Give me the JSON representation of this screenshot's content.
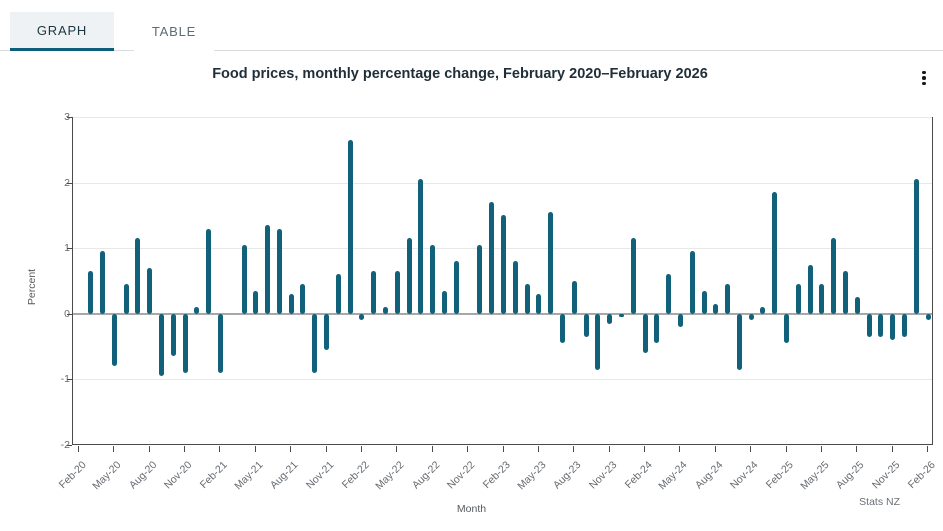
{
  "tabs": {
    "graph": "GRAPH",
    "table": "TABLE"
  },
  "header": {
    "title": "Food prices, monthly percentage change, February 2020–February 2026"
  },
  "menu": {
    "kebab_icon": "kebab-menu"
  },
  "source": "Stats NZ",
  "colors": {
    "bar": "#12617a",
    "tab_underline": "#0d5e78",
    "tab_active_bg": "#eef2f4",
    "zero_line": "#a8a8a8",
    "grid": "#e8e8e8"
  },
  "chart_data": {
    "type": "bar",
    "title": "Food prices, monthly percentage change, February 2020–February 2026",
    "xlabel": "Month",
    "ylabel": "Percent",
    "ylim": [
      -2,
      3
    ],
    "yticks": [
      3,
      2,
      1,
      0,
      -1,
      -2
    ],
    "grid": true,
    "label_every": 3,
    "categories": [
      "Feb-20",
      "Mar-20",
      "Apr-20",
      "May-20",
      "Jun-20",
      "Jul-20",
      "Aug-20",
      "Sep-20",
      "Oct-20",
      "Nov-20",
      "Dec-20",
      "Jan-21",
      "Feb-21",
      "Mar-21",
      "Apr-21",
      "May-21",
      "Jun-21",
      "Jul-21",
      "Aug-21",
      "Sep-21",
      "Oct-21",
      "Nov-21",
      "Dec-21",
      "Jan-22",
      "Feb-22",
      "Mar-22",
      "Apr-22",
      "May-22",
      "Jun-22",
      "Jul-22",
      "Aug-22",
      "Sep-22",
      "Oct-22",
      "Nov-22",
      "Dec-22",
      "Jan-23",
      "Feb-23",
      "Mar-23",
      "Apr-23",
      "May-23",
      "Jun-23",
      "Jul-23",
      "Aug-23",
      "Sep-23",
      "Oct-23",
      "Nov-23",
      "Dec-23",
      "Jan-24",
      "Feb-24",
      "Mar-24",
      "Apr-24",
      "May-24",
      "Jun-24",
      "Jul-24",
      "Aug-24",
      "Sep-24",
      "Oct-24",
      "Nov-24",
      "Dec-24",
      "Jan-25",
      "Feb-25",
      "Mar-25",
      "Apr-25",
      "May-25",
      "Jun-25",
      "Jul-25",
      "Aug-25",
      "Sep-25",
      "Oct-25",
      "Nov-25",
      "Dec-25",
      "Jan-26",
      "Feb-26"
    ],
    "values": [
      0.0,
      0.65,
      0.95,
      -0.8,
      0.45,
      1.15,
      0.7,
      -0.95,
      -0.65,
      -0.9,
      0.1,
      1.3,
      -0.9,
      0.0,
      1.05,
      0.35,
      1.35,
      1.3,
      0.3,
      0.45,
      -0.9,
      -0.55,
      0.6,
      2.65,
      -0.1,
      0.65,
      0.1,
      0.65,
      1.15,
      2.05,
      1.05,
      0.35,
      0.8,
      0.0,
      1.05,
      1.7,
      1.5,
      0.8,
      0.45,
      0.3,
      1.55,
      -0.45,
      0.5,
      -0.35,
      -0.85,
      -0.15,
      -0.05,
      1.15,
      -0.6,
      -0.45,
      0.6,
      -0.2,
      0.95,
      0.35,
      0.15,
      0.45,
      -0.85,
      -0.1,
      0.1,
      1.85,
      -0.45,
      0.45,
      0.75,
      0.45,
      1.15,
      0.65,
      0.25,
      -0.35,
      -0.35,
      -0.4,
      -0.35,
      2.05,
      -0.1
    ]
  }
}
